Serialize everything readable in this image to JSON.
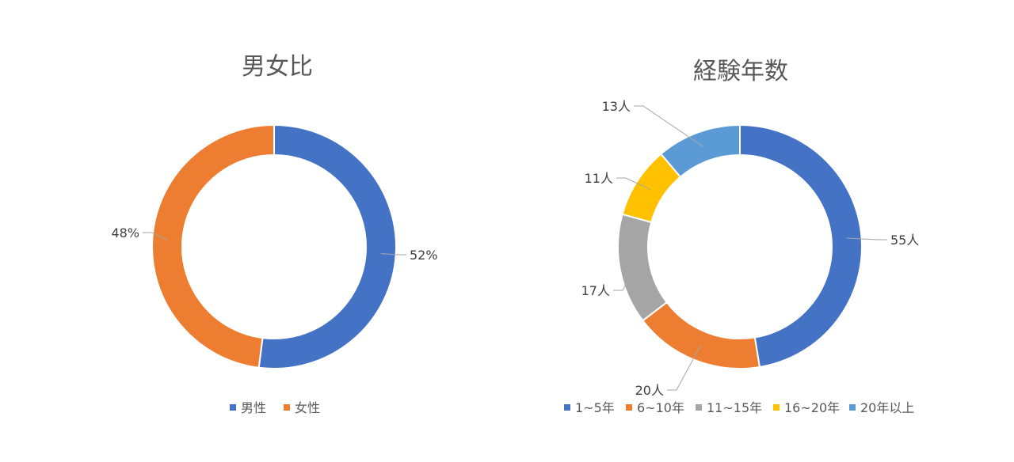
{
  "chart_data": [
    {
      "type": "donut",
      "title": "男女比",
      "categories": [
        "男性",
        "女性"
      ],
      "values": [
        52,
        48
      ],
      "data_labels": [
        "52%",
        "48%"
      ],
      "colors": [
        "#4472C4",
        "#ED7D31"
      ],
      "legend_placement": "bottom"
    },
    {
      "type": "donut",
      "title": "経験年数",
      "categories": [
        "1~5年",
        "6~10年",
        "11~15年",
        "16~20年",
        "20年以上"
      ],
      "values": [
        55,
        20,
        17,
        11,
        13
      ],
      "data_labels": [
        "55人",
        "20人",
        "17人",
        "11人",
        "13人"
      ],
      "colors": [
        "#4472C4",
        "#ED7D31",
        "#A5A5A5",
        "#FFC000",
        "#5B9BD5"
      ],
      "legend_placement": "bottom"
    }
  ]
}
